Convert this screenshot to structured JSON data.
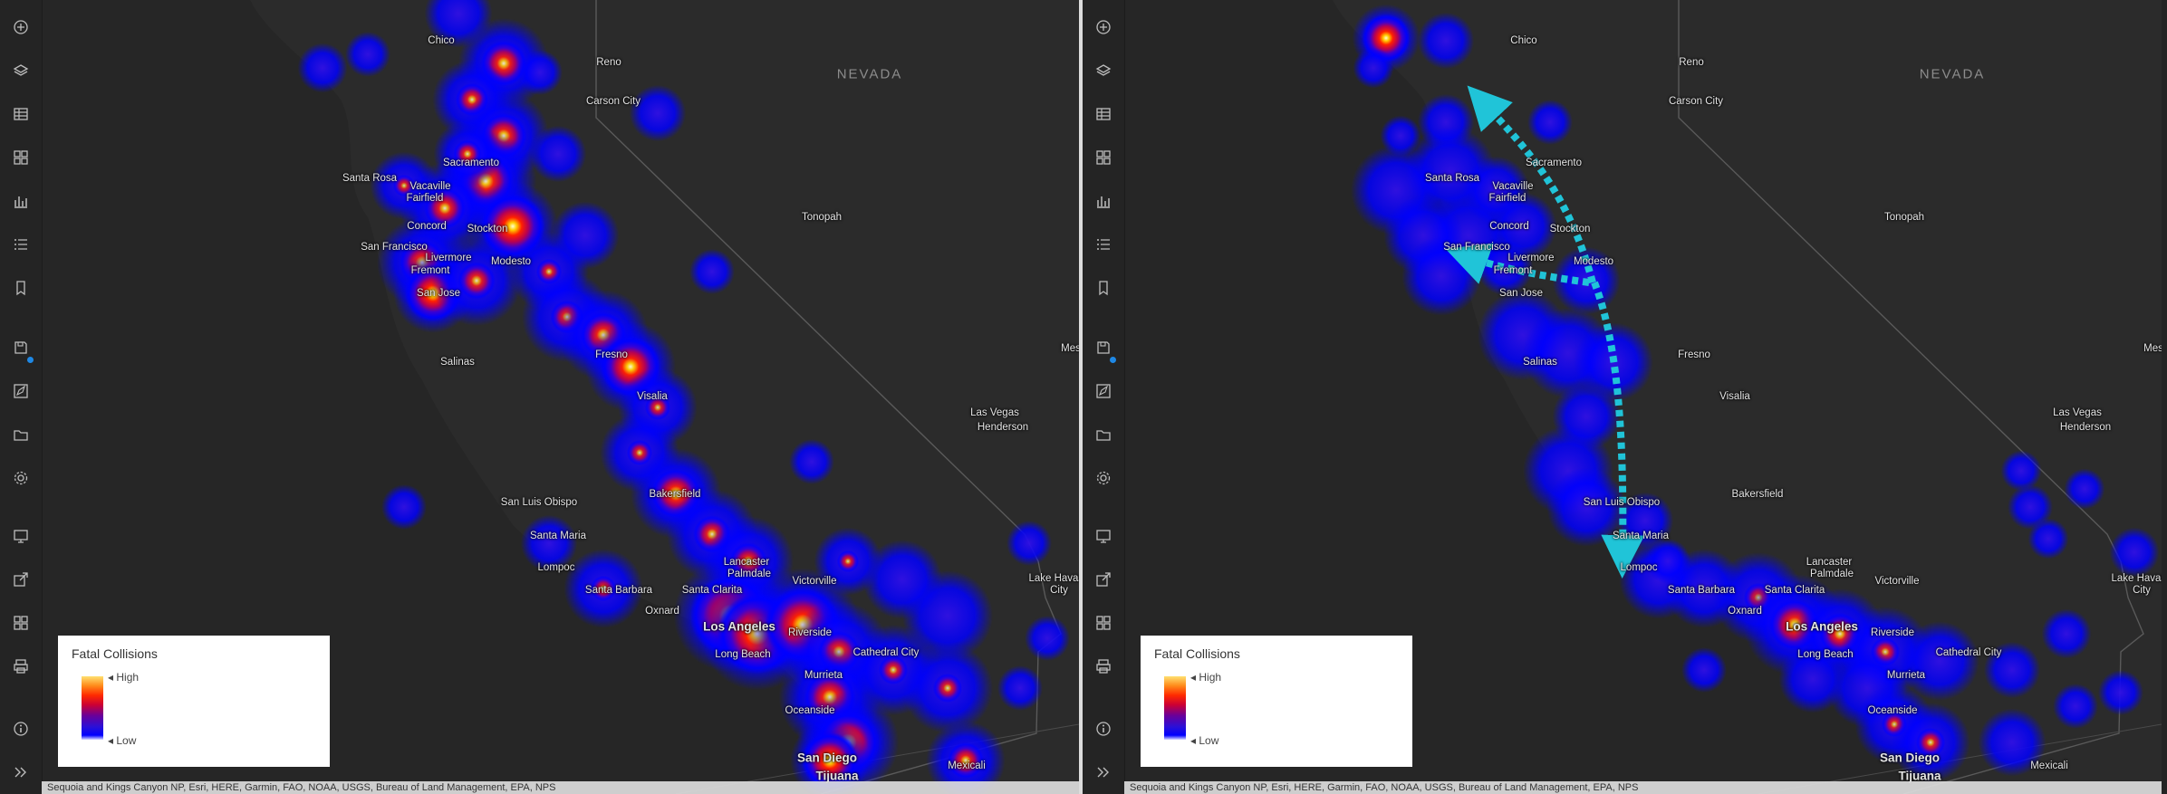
{
  "toolbar": {
    "icons": [
      "add-icon",
      "layers-icon",
      "table-icon",
      "basemap-gallery-icon",
      "chart-icon",
      "legend-list-icon",
      "bookmark-icon",
      "save-icon",
      "edit-icon",
      "open-folder-icon",
      "settings-icon",
      "presentation-icon",
      "share-icon",
      "apps-icon",
      "print-icon",
      "info-icon",
      "expand-icon"
    ]
  },
  "map": {
    "state_label": "NEVADA",
    "cities": [
      {
        "id": "chico",
        "name": "Chico",
        "big": false
      },
      {
        "id": "reno",
        "name": "Reno",
        "big": false
      },
      {
        "id": "carson-city",
        "name": "Carson City",
        "big": false
      },
      {
        "id": "sacramento",
        "name": "Sacramento",
        "big": false
      },
      {
        "id": "santa-rosa",
        "name": "Santa Rosa",
        "big": false
      },
      {
        "id": "vacaville",
        "name": "Vacaville",
        "big": false
      },
      {
        "id": "fairfield",
        "name": "Fairfield",
        "big": false
      },
      {
        "id": "concord",
        "name": "Concord",
        "big": false
      },
      {
        "id": "stockton",
        "name": "Stockton",
        "big": false
      },
      {
        "id": "san-francisco",
        "name": "San Francisco",
        "big": false
      },
      {
        "id": "livermore",
        "name": "Livermore",
        "big": false
      },
      {
        "id": "modesto",
        "name": "Modesto",
        "big": false
      },
      {
        "id": "fremont",
        "name": "Fremont",
        "big": false
      },
      {
        "id": "san-jose",
        "name": "San Jose",
        "big": false
      },
      {
        "id": "tonopah",
        "name": "Tonopah",
        "big": false
      },
      {
        "id": "salinas",
        "name": "Salinas",
        "big": false
      },
      {
        "id": "fresno",
        "name": "Fresno",
        "big": false
      },
      {
        "id": "visalia",
        "name": "Visalia",
        "big": false
      },
      {
        "id": "las-vegas",
        "name": "Las Vegas",
        "big": false
      },
      {
        "id": "henderson",
        "name": "Henderson",
        "big": false
      },
      {
        "id": "san-luis-obispo",
        "name": "San Luis Obispo",
        "big": false
      },
      {
        "id": "bakersfield",
        "name": "Bakersfield",
        "big": false
      },
      {
        "id": "santa-maria",
        "name": "Santa Maria",
        "big": false
      },
      {
        "id": "lompoc",
        "name": "Lompoc",
        "big": false
      },
      {
        "id": "lancaster",
        "name": "Lancaster",
        "big": false
      },
      {
        "id": "palmdale",
        "name": "Palmdale",
        "big": false
      },
      {
        "id": "victorville",
        "name": "Victorville",
        "big": false
      },
      {
        "id": "santa-barbara",
        "name": "Santa Barbara",
        "big": false
      },
      {
        "id": "santa-clarita",
        "name": "Santa Clarita",
        "big": false
      },
      {
        "id": "oxnard",
        "name": "Oxnard",
        "big": false
      },
      {
        "id": "los-angeles",
        "name": "Los Angeles",
        "big": true
      },
      {
        "id": "riverside",
        "name": "Riverside",
        "big": false
      },
      {
        "id": "long-beach",
        "name": "Long Beach",
        "big": false
      },
      {
        "id": "cathedral-city",
        "name": "Cathedral City",
        "big": false
      },
      {
        "id": "murrieta",
        "name": "Murrieta",
        "big": false
      },
      {
        "id": "oceanside",
        "name": "Oceanside",
        "big": false
      },
      {
        "id": "san-diego",
        "name": "San Diego",
        "big": true
      },
      {
        "id": "tijuana",
        "name": "Tijuana",
        "big": true
      },
      {
        "id": "mexicali",
        "name": "Mexicali",
        "big": false
      },
      {
        "id": "lake-havasu",
        "name": "Lake Havasu",
        "big": false
      },
      {
        "id": "city",
        "name": "City",
        "big": false
      },
      {
        "id": "mesquite",
        "name": "Mes",
        "big": false
      }
    ]
  },
  "legend": {
    "title": "Fatal Collisions",
    "high_label": "High",
    "low_label": "Low"
  },
  "attribution": "Sequoia and Kings Canyon NP, Esri, HERE, Garmin, FAO, NOAA, USGS, Bureau of Land Management, EPA, NPS",
  "colors": {
    "background": "#2b2b2b",
    "heat_low": "#0000ff",
    "heat_mid": "#ff0000",
    "heat_high": "#ffffc0",
    "arrow": "#20c4d8"
  }
}
